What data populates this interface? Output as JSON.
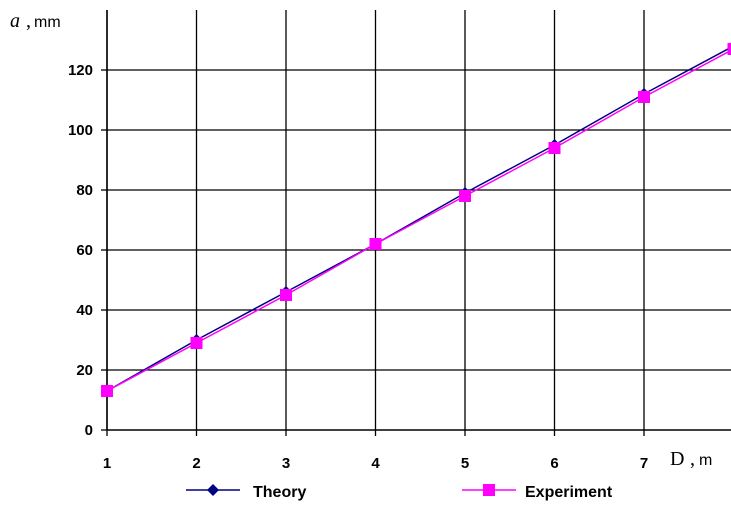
{
  "chart_data": {
    "type": "line",
    "title": "",
    "ylabel_symbol": "a",
    "ylabel_unit": "mm",
    "xlabel_symbol": "D",
    "xlabel_unit": "m",
    "xlim": [
      1,
      8
    ],
    "ylim": [
      0,
      140
    ],
    "x_ticks": [
      "1",
      "2",
      "3",
      "4",
      "5",
      "6",
      "7"
    ],
    "y_ticks": [
      "0",
      "20",
      "40",
      "60",
      "80",
      "100",
      "120"
    ],
    "grid": true,
    "legend_position": "bottom",
    "x": [
      1,
      2,
      3,
      4,
      5,
      6,
      7,
      8
    ],
    "series": [
      {
        "name": "Theory",
        "color": "#000080",
        "marker": "diamond",
        "values": [
          13,
          30,
          46,
          62,
          79,
          95,
          112,
          128
        ]
      },
      {
        "name": "Experiment",
        "color": "#FF00FF",
        "marker": "square",
        "values": [
          13,
          29,
          45,
          62,
          78,
          94,
          111,
          127
        ]
      }
    ]
  }
}
